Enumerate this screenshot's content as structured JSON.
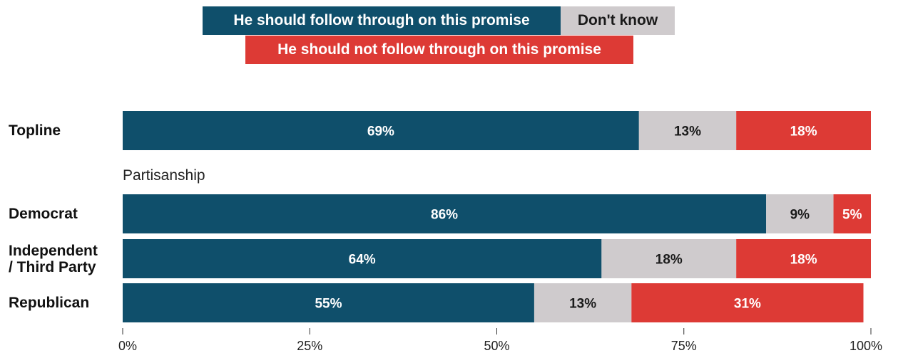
{
  "chart_data": {
    "type": "bar",
    "orientation": "horizontal",
    "stacked": true,
    "categories": [
      "Topline",
      "Democrat",
      "Independent / Third Party",
      "Republican"
    ],
    "category_lines": [
      [
        "Topline"
      ],
      [
        "Democrat"
      ],
      [
        "Independent",
        "/ Third Party"
      ],
      [
        "Republican"
      ]
    ],
    "group_label": "Partisanship",
    "series": [
      {
        "name": "He should follow through on this promise",
        "color": "#0f4f6b",
        "text_color": "#ffffff",
        "values": [
          69,
          86,
          64,
          55
        ],
        "labels": [
          "69%",
          "86%",
          "64%",
          "55%"
        ]
      },
      {
        "name": "Don't know",
        "color": "#cfcbcd",
        "text_color": "#1a1a1a",
        "values": [
          13,
          9,
          18,
          13
        ],
        "labels": [
          "13%",
          "9%",
          "18%",
          "13%"
        ]
      },
      {
        "name": "He should not follow through on this promise",
        "color": "#dd3a35",
        "text_color": "#ffffff",
        "values": [
          18,
          5,
          18,
          31
        ],
        "labels": [
          "18%",
          "5%",
          "18%",
          "31%"
        ]
      }
    ],
    "xlim": [
      0,
      100
    ],
    "ticks": [
      0,
      25,
      50,
      75,
      100
    ],
    "tick_labels": [
      "0%",
      "25%",
      "50%",
      "75%",
      "100%"
    ],
    "legend_placement": "top-center",
    "grid": false
  }
}
